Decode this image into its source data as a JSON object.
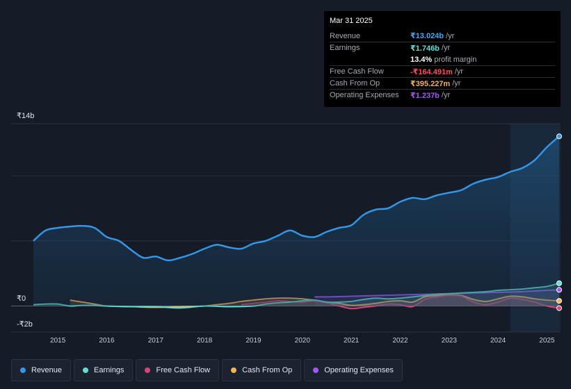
{
  "tooltip": {
    "date": "Mar 31 2025",
    "rows": [
      {
        "label": "Revenue",
        "value": "₹13.024b",
        "unit": "/yr",
        "color": "#3fa9f5"
      },
      {
        "label": "Earnings",
        "value": "₹1.746b",
        "unit": "/yr",
        "color": "#5ce0d4"
      },
      {
        "label": "",
        "value": "13.4%",
        "unit": "profit margin",
        "color": "#ffffff"
      },
      {
        "label": "Free Cash Flow",
        "value": "-₹164.491m",
        "unit": "/yr",
        "color": "#ff4d5e"
      },
      {
        "label": "Cash From Op",
        "value": "₹395.227m",
        "unit": "/yr",
        "color": "#f5b25a"
      },
      {
        "label": "Operating Expenses",
        "value": "₹1.237b",
        "unit": "/yr",
        "color": "#a855f7"
      }
    ]
  },
  "legend": [
    {
      "label": "Revenue",
      "color": "#3496e6"
    },
    {
      "label": "Earnings",
      "color": "#5ce0d4"
    },
    {
      "label": "Free Cash Flow",
      "color": "#d9457a"
    },
    {
      "label": "Cash From Op",
      "color": "#f5b25a"
    },
    {
      "label": "Operating Expenses",
      "color": "#a855f7"
    }
  ],
  "chart_data": {
    "type": "area",
    "title": "",
    "xlabel": "",
    "ylabel": "",
    "y_tick_labels": [
      "₹14b",
      "₹0",
      "-₹2b"
    ],
    "ylim": [
      -2,
      14
    ],
    "xlim": [
      2014.5,
      2025.25
    ],
    "x_tick_labels": [
      "2015",
      "2016",
      "2017",
      "2018",
      "2019",
      "2020",
      "2021",
      "2022",
      "2023",
      "2024",
      "2025"
    ],
    "forecast_shade_start": 2024.25,
    "series": [
      {
        "name": "Revenue",
        "color": "#3496e6",
        "x": [
          2014.5,
          2014.75,
          2015.0,
          2015.25,
          2015.5,
          2015.75,
          2016.0,
          2016.25,
          2016.5,
          2016.75,
          2017.0,
          2017.25,
          2017.5,
          2017.75,
          2018.0,
          2018.25,
          2018.5,
          2018.75,
          2019.0,
          2019.25,
          2019.5,
          2019.75,
          2020.0,
          2020.25,
          2020.5,
          2020.75,
          2021.0,
          2021.25,
          2021.5,
          2021.75,
          2022.0,
          2022.25,
          2022.5,
          2022.75,
          2023.0,
          2023.25,
          2023.5,
          2023.75,
          2024.0,
          2024.25,
          2024.5,
          2024.75,
          2025.0,
          2025.25
        ],
        "values": [
          5.0,
          5.8,
          6.0,
          6.1,
          6.15,
          6.0,
          5.3,
          5.0,
          4.3,
          3.7,
          3.8,
          3.5,
          3.7,
          4.0,
          4.4,
          4.7,
          4.5,
          4.4,
          4.8,
          5.0,
          5.4,
          5.8,
          5.4,
          5.3,
          5.7,
          6.0,
          6.2,
          7.0,
          7.4,
          7.5,
          8.0,
          8.3,
          8.2,
          8.5,
          8.7,
          8.9,
          9.4,
          9.7,
          9.9,
          10.3,
          10.6,
          11.2,
          12.2,
          13.024
        ]
      },
      {
        "name": "Earnings",
        "color": "#5ce0d4",
        "x": [
          2014.5,
          2014.75,
          2015.0,
          2015.25,
          2015.5,
          2015.75,
          2016.0,
          2016.5,
          2017.0,
          2017.5,
          2018.0,
          2018.5,
          2019.0,
          2019.25,
          2019.5,
          2019.75,
          2020.0,
          2020.25,
          2020.5,
          2020.75,
          2021.0,
          2021.25,
          2021.5,
          2021.75,
          2022.0,
          2022.25,
          2022.5,
          2022.75,
          2023.0,
          2023.25,
          2023.5,
          2023.75,
          2024.0,
          2024.25,
          2024.5,
          2024.75,
          2025.0,
          2025.25
        ],
        "values": [
          0.1,
          0.15,
          0.15,
          0.0,
          0.05,
          0.05,
          0.0,
          -0.05,
          -0.05,
          -0.15,
          0.0,
          -0.05,
          0.0,
          0.15,
          0.25,
          0.3,
          0.4,
          0.45,
          0.3,
          0.3,
          0.35,
          0.5,
          0.6,
          0.55,
          0.6,
          0.7,
          0.8,
          0.9,
          0.95,
          1.0,
          1.05,
          1.1,
          1.2,
          1.25,
          1.3,
          1.4,
          1.5,
          1.746
        ]
      },
      {
        "name": "Free Cash Flow",
        "color": "#d9457a",
        "x": [
          2018.75,
          2019.0,
          2019.25,
          2019.5,
          2019.75,
          2020.0,
          2020.25,
          2020.5,
          2020.75,
          2021.0,
          2021.25,
          2021.5,
          2021.75,
          2022.0,
          2022.25,
          2022.5,
          2022.75,
          2023.0,
          2023.25,
          2023.5,
          2023.75,
          2024.0,
          2024.25,
          2024.5,
          2024.75,
          2025.0,
          2025.25
        ],
        "values": [
          0.1,
          0.2,
          0.3,
          0.4,
          0.35,
          0.3,
          0.4,
          0.25,
          0.0,
          -0.2,
          -0.1,
          0.0,
          0.15,
          0.1,
          -0.05,
          0.5,
          0.7,
          0.8,
          0.75,
          0.3,
          0.1,
          0.3,
          0.6,
          0.5,
          0.3,
          0.0,
          -0.164
        ]
      },
      {
        "name": "Cash From Op",
        "color": "#f5b25a",
        "x": [
          2015.25,
          2015.5,
          2015.75,
          2016.0,
          2016.5,
          2017.0,
          2017.5,
          2018.0,
          2018.25,
          2018.5,
          2018.75,
          2019.0,
          2019.25,
          2019.5,
          2019.75,
          2020.0,
          2020.25,
          2020.5,
          2020.75,
          2021.0,
          2021.25,
          2021.5,
          2021.75,
          2022.0,
          2022.25,
          2022.5,
          2022.75,
          2023.0,
          2023.25,
          2023.5,
          2023.75,
          2024.0,
          2024.25,
          2024.5,
          2024.75,
          2025.0,
          2025.25
        ],
        "values": [
          0.45,
          0.3,
          0.15,
          0.0,
          -0.05,
          -0.1,
          -0.05,
          0.0,
          0.1,
          0.2,
          0.35,
          0.45,
          0.55,
          0.6,
          0.6,
          0.55,
          0.45,
          0.3,
          0.2,
          0.05,
          0.1,
          0.2,
          0.35,
          0.4,
          0.3,
          0.7,
          0.8,
          0.85,
          0.8,
          0.5,
          0.35,
          0.55,
          0.75,
          0.7,
          0.55,
          0.45,
          0.395
        ]
      },
      {
        "name": "Operating Expenses",
        "color": "#a855f7",
        "x": [
          2020.25,
          2020.5,
          2020.75,
          2021.0,
          2021.5,
          2022.0,
          2022.5,
          2023.0,
          2023.5,
          2024.0,
          2024.5,
          2025.0,
          2025.25
        ],
        "values": [
          0.7,
          0.7,
          0.72,
          0.75,
          0.8,
          0.85,
          0.9,
          0.95,
          1.0,
          1.05,
          1.1,
          1.2,
          1.237
        ]
      }
    ]
  }
}
